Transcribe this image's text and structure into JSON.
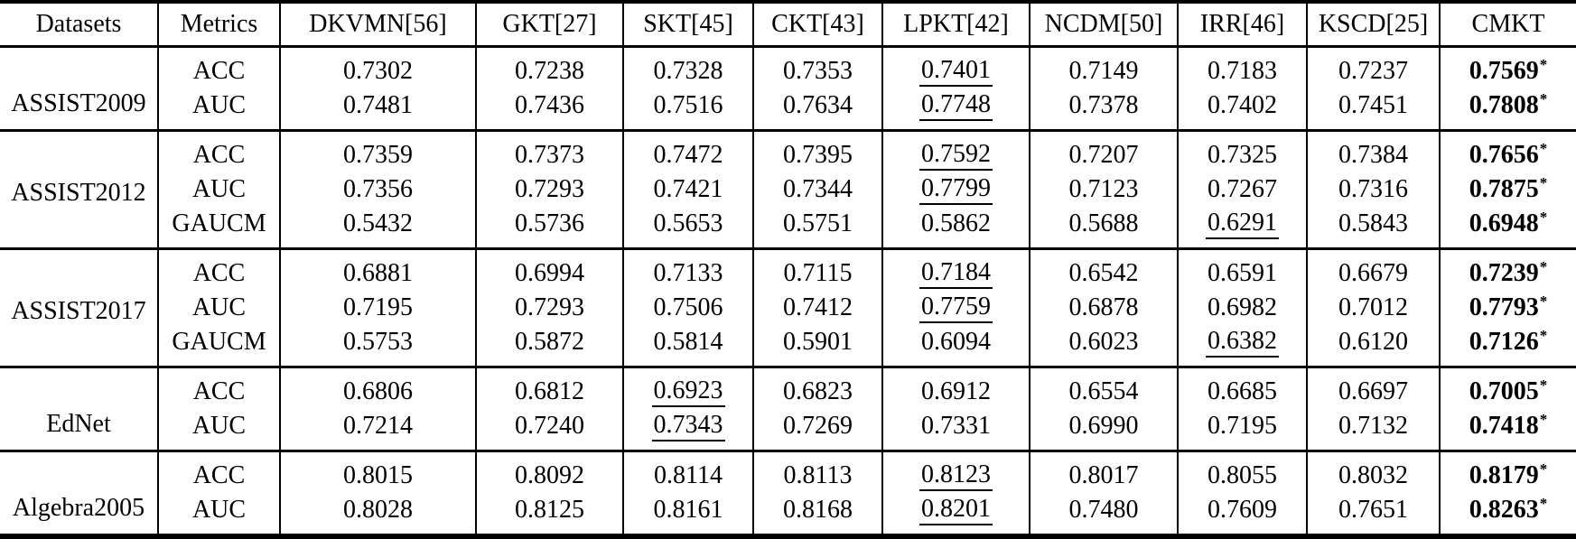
{
  "table": {
    "star": "*",
    "header": [
      "Datasets",
      "Metrics",
      "DKVMN[56]",
      "GKT[27]",
      "SKT[45]",
      "CKT[43]",
      "LPKT[42]",
      "NCDM[50]",
      "IRR[46]",
      "KSCD[25]",
      "CMKT"
    ],
    "groups": [
      {
        "dataset": "ASSIST2009",
        "rows": [
          {
            "metric": "ACC",
            "cells": [
              {
                "v": "0.7302"
              },
              {
                "v": "0.7238"
              },
              {
                "v": "0.7328"
              },
              {
                "v": "0.7353"
              },
              {
                "v": "0.7401",
                "u": true
              },
              {
                "v": "0.7149"
              },
              {
                "v": "0.7183"
              },
              {
                "v": "0.7237"
              },
              {
                "v": "0.7569",
                "b": true,
                "s": true
              }
            ]
          },
          {
            "metric": "AUC",
            "cells": [
              {
                "v": "0.7481"
              },
              {
                "v": "0.7436"
              },
              {
                "v": "0.7516"
              },
              {
                "v": "0.7634"
              },
              {
                "v": "0.7748",
                "u": true
              },
              {
                "v": "0.7378"
              },
              {
                "v": "0.7402"
              },
              {
                "v": "0.7451"
              },
              {
                "v": "0.7808",
                "b": true,
                "s": true
              }
            ]
          }
        ]
      },
      {
        "dataset": "ASSIST2012",
        "rows": [
          {
            "metric": "ACC",
            "cells": [
              {
                "v": "0.7359"
              },
              {
                "v": "0.7373"
              },
              {
                "v": "0.7472"
              },
              {
                "v": "0.7395"
              },
              {
                "v": "0.7592",
                "u": true
              },
              {
                "v": "0.7207"
              },
              {
                "v": "0.7325"
              },
              {
                "v": "0.7384"
              },
              {
                "v": "0.7656",
                "b": true,
                "s": true
              }
            ]
          },
          {
            "metric": "AUC",
            "cells": [
              {
                "v": "0.7356"
              },
              {
                "v": "0.7293"
              },
              {
                "v": "0.7421"
              },
              {
                "v": "0.7344"
              },
              {
                "v": "0.7799",
                "u": true
              },
              {
                "v": "0.7123"
              },
              {
                "v": "0.7267"
              },
              {
                "v": "0.7316"
              },
              {
                "v": "0.7875",
                "b": true,
                "s": true
              }
            ]
          },
          {
            "metric": "GAUCM",
            "cells": [
              {
                "v": "0.5432"
              },
              {
                "v": "0.5736"
              },
              {
                "v": "0.5653"
              },
              {
                "v": "0.5751"
              },
              {
                "v": "0.5862"
              },
              {
                "v": "0.5688"
              },
              {
                "v": "0.6291",
                "u": true
              },
              {
                "v": "0.5843"
              },
              {
                "v": "0.6948",
                "b": true,
                "s": true
              }
            ]
          }
        ]
      },
      {
        "dataset": "ASSIST2017",
        "rows": [
          {
            "metric": "ACC",
            "cells": [
              {
                "v": "0.6881"
              },
              {
                "v": "0.6994"
              },
              {
                "v": "0.7133"
              },
              {
                "v": "0.7115"
              },
              {
                "v": "0.7184",
                "u": true
              },
              {
                "v": "0.6542"
              },
              {
                "v": "0.6591"
              },
              {
                "v": "0.6679"
              },
              {
                "v": "0.7239",
                "b": true,
                "s": true
              }
            ]
          },
          {
            "metric": "AUC",
            "cells": [
              {
                "v": "0.7195"
              },
              {
                "v": "0.7293"
              },
              {
                "v": "0.7506"
              },
              {
                "v": "0.7412"
              },
              {
                "v": "0.7759",
                "u": true
              },
              {
                "v": "0.6878"
              },
              {
                "v": "0.6982"
              },
              {
                "v": "0.7012"
              },
              {
                "v": "0.7793",
                "b": true,
                "s": true
              }
            ]
          },
          {
            "metric": "GAUCM",
            "cells": [
              {
                "v": "0.5753"
              },
              {
                "v": "0.5872"
              },
              {
                "v": "0.5814"
              },
              {
                "v": "0.5901"
              },
              {
                "v": "0.6094"
              },
              {
                "v": "0.6023"
              },
              {
                "v": "0.6382",
                "u": true
              },
              {
                "v": "0.6120"
              },
              {
                "v": "0.7126",
                "b": true,
                "s": true
              }
            ]
          }
        ]
      },
      {
        "dataset": "EdNet",
        "rows": [
          {
            "metric": "ACC",
            "cells": [
              {
                "v": "0.6806"
              },
              {
                "v": "0.6812"
              },
              {
                "v": "0.6923",
                "u": true
              },
              {
                "v": "0.6823"
              },
              {
                "v": "0.6912"
              },
              {
                "v": "0.6554"
              },
              {
                "v": "0.6685"
              },
              {
                "v": "0.6697"
              },
              {
                "v": "0.7005",
                "b": true,
                "s": true
              }
            ]
          },
          {
            "metric": "AUC",
            "cells": [
              {
                "v": "0.7214"
              },
              {
                "v": "0.7240"
              },
              {
                "v": "0.7343",
                "u": true
              },
              {
                "v": "0.7269"
              },
              {
                "v": "0.7331"
              },
              {
                "v": "0.6990"
              },
              {
                "v": "0.7195"
              },
              {
                "v": "0.7132"
              },
              {
                "v": "0.7418",
                "b": true,
                "s": true
              }
            ]
          }
        ]
      },
      {
        "dataset": "Algebra2005",
        "rows": [
          {
            "metric": "ACC",
            "cells": [
              {
                "v": "0.8015"
              },
              {
                "v": "0.8092"
              },
              {
                "v": "0.8114"
              },
              {
                "v": "0.8113"
              },
              {
                "v": "0.8123",
                "u": true
              },
              {
                "v": "0.8017"
              },
              {
                "v": "0.8055"
              },
              {
                "v": "0.8032"
              },
              {
                "v": "0.8179",
                "b": true,
                "s": true
              }
            ]
          },
          {
            "metric": "AUC",
            "cells": [
              {
                "v": "0.8028"
              },
              {
                "v": "0.8125"
              },
              {
                "v": "0.8161"
              },
              {
                "v": "0.8168"
              },
              {
                "v": "0.8201",
                "u": true
              },
              {
                "v": "0.7480"
              },
              {
                "v": "0.7609"
              },
              {
                "v": "0.7651"
              },
              {
                "v": "0.8263",
                "b": true,
                "s": true
              }
            ]
          }
        ]
      }
    ]
  }
}
